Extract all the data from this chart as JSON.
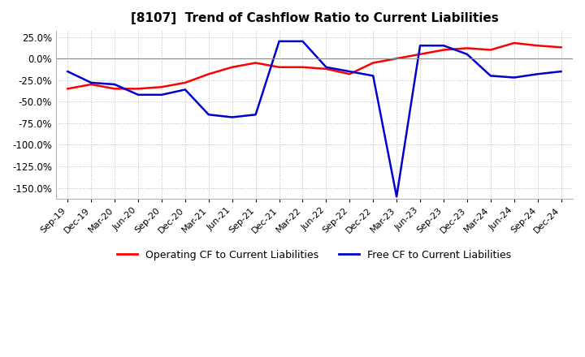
{
  "title": "[8107]  Trend of Cashflow Ratio to Current Liabilities",
  "title_fontsize": 11,
  "ylim": [
    -162.5,
    32.0
  ],
  "yticks": [
    25.0,
    0.0,
    -25.0,
    -50.0,
    -75.0,
    -100.0,
    -125.0,
    -150.0
  ],
  "background_color": "#ffffff",
  "plot_bg_color": "#ffffff",
  "grid_color": "#bbbbbb",
  "x_labels": [
    "Sep-19",
    "Dec-19",
    "Mar-20",
    "Jun-20",
    "Sep-20",
    "Dec-20",
    "Mar-21",
    "Jun-21",
    "Sep-21",
    "Dec-21",
    "Mar-22",
    "Jun-22",
    "Sep-22",
    "Dec-22",
    "Mar-23",
    "Jun-23",
    "Sep-23",
    "Dec-23",
    "Mar-24",
    "Jun-24",
    "Sep-24",
    "Dec-24"
  ],
  "operating_cf": [
    -35.0,
    -30.0,
    -35.0,
    -35.0,
    -33.0,
    -28.0,
    -18.0,
    -10.0,
    -5.0,
    -10.0,
    -10.0,
    -12.0,
    -18.0,
    -5.0,
    0.0,
    5.0,
    10.0,
    12.0,
    10.0,
    18.0,
    15.0,
    13.0
  ],
  "free_cf": [
    -15.0,
    -28.0,
    -30.0,
    -42.0,
    -42.0,
    -36.0,
    -65.0,
    -68.0,
    -65.0,
    20.0,
    20.0,
    -10.0,
    -15.0,
    -20.0,
    -160.0,
    15.0,
    15.0,
    5.0,
    -20.0,
    -22.0,
    -18.0,
    -15.0
  ],
  "operating_color": "#ff0000",
  "free_color": "#0000cc",
  "legend_labels": [
    "Operating CF to Current Liabilities",
    "Free CF to Current Liabilities"
  ]
}
